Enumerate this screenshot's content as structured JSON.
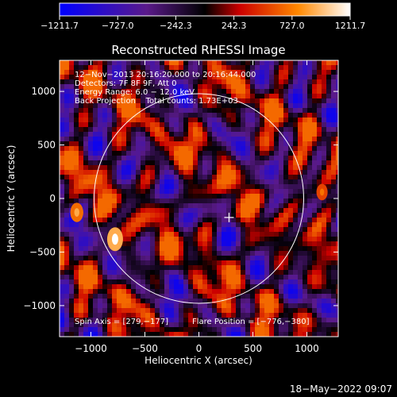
{
  "chart_data": {
    "type": "heatmap",
    "title": "Reconstructed RHESSI Image",
    "xlabel": "Heliocentric X (arcsec)",
    "ylabel": "Heliocentric Y (arcsec)",
    "xlim": [
      -1290,
      1290
    ],
    "ylim": [
      -1290,
      1290
    ],
    "xticks": [
      -1000,
      -500,
      0,
      500,
      1000
    ],
    "yticks": [
      -1000,
      -500,
      0,
      500,
      1000
    ],
    "xtick_labels": [
      "−1000",
      "−500",
      "0",
      "500",
      "1000"
    ],
    "ytick_labels": [
      "−1000",
      "−500",
      "0",
      "500",
      "1000"
    ],
    "colorbar": {
      "range": [
        -1211.7,
        1211.7
      ],
      "ticks": [
        -1211.7,
        -727.0,
        -242.3,
        242.3,
        727.0,
        1211.7
      ],
      "tick_labels": [
        "−1211.7",
        "−727.0",
        "−242.3",
        "242.3",
        "727.0",
        "1211.7"
      ],
      "colors": [
        "#0000ff",
        "#5a1a8a",
        "#000000",
        "#cc0000",
        "#ff8800",
        "#ffffff"
      ]
    },
    "annotations": [
      "12−Nov−2013 20:16:20.000 to 20:16:44.000",
      "Detectors: 7F 8F 9F, Att 0",
      "Energy Range: 6.0 − 12.0 keV",
      "Back Projection    Total counts: 1.73E+03"
    ],
    "footer_left": "Spin Axis = [279,−177]",
    "footer_right": "Flare Position = [−776,−380]",
    "limb_radius_arcsec": 970,
    "sun_center": [
      0,
      0
    ],
    "marker": {
      "type": "cross",
      "x": 279,
      "y": -177
    },
    "bright_sources": [
      {
        "x": -776,
        "y": -380,
        "intensity": 1211.7
      },
      {
        "x": -1130,
        "y": -130,
        "intensity": 900
      },
      {
        "x": 1140,
        "y": 60,
        "intensity": 700
      }
    ]
  },
  "date_stamp": "18−May−2022 09:07"
}
